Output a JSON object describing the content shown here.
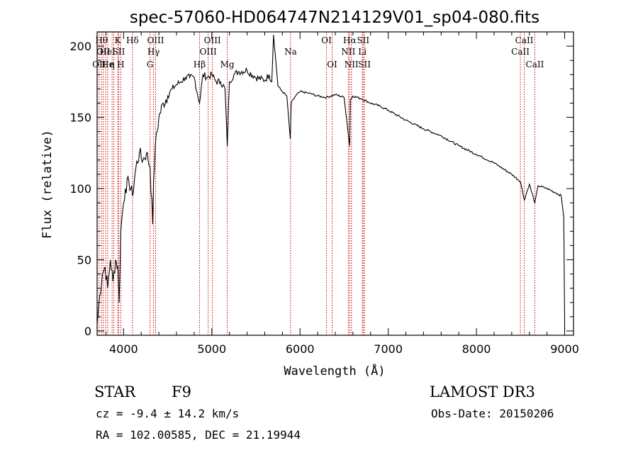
{
  "chart_data": {
    "type": "line",
    "title": "spec-57060-HD064747N214129V01_sp04-080.fits",
    "xlabel": "Wavelength (Å)",
    "ylabel": "Flux (relative)",
    "xlim": [
      3700,
      9100
    ],
    "ylim": [
      -3,
      210
    ],
    "xticks": [
      4000,
      5000,
      6000,
      7000,
      8000,
      9000
    ],
    "yticks": [
      0,
      50,
      100,
      150,
      200
    ],
    "xtick_labels": [
      "4000",
      "5000",
      "6000",
      "7000",
      "8000",
      "9000"
    ],
    "ytick_labels": [
      "0",
      "50",
      "100",
      "150",
      "200"
    ],
    "grid": false,
    "series": [
      {
        "name": "spectrum",
        "x": [
          3700,
          3730,
          3760,
          3790,
          3820,
          3850,
          3880,
          3910,
          3935,
          3950,
          3968,
          3990,
          4020,
          4060,
          4101,
          4140,
          4180,
          4220,
          4260,
          4300,
          4330,
          4340,
          4360,
          4400,
          4450,
          4500,
          4550,
          4600,
          4650,
          4700,
          4750,
          4800,
          4861,
          4900,
          4950,
          5000,
          5050,
          5100,
          5150,
          5175,
          5200,
          5250,
          5300,
          5400,
          5500,
          5600,
          5650,
          5680,
          5700,
          5750,
          5800,
          5850,
          5890,
          5900,
          5950,
          6000,
          6100,
          6200,
          6300,
          6400,
          6500,
          6563,
          6570,
          6600,
          6700,
          6800,
          6900,
          7000,
          7200,
          7400,
          7600,
          7800,
          8000,
          8200,
          8400,
          8498,
          8542,
          8600,
          8662,
          8700,
          8800,
          8900,
          8960,
          8990,
          9000
        ],
        "values": [
          5,
          25,
          40,
          45,
          30,
          50,
          35,
          50,
          45,
          20,
          70,
          85,
          100,
          105,
          95,
          115,
          125,
          120,
          125,
          115,
          75,
          105,
          130,
          150,
          160,
          165,
          170,
          173,
          175,
          178,
          178,
          178,
          160,
          180,
          178,
          180,
          175,
          175,
          170,
          130,
          175,
          180,
          182,
          183,
          178,
          176,
          180,
          175,
          208,
          172,
          168,
          165,
          135,
          160,
          165,
          168,
          167,
          165,
          164,
          166,
          164,
          130,
          162,
          165,
          163,
          160,
          158,
          155,
          148,
          142,
          137,
          130,
          124,
          118,
          110,
          105,
          92,
          103,
          90,
          102,
          100,
          97,
          95,
          80,
          0
        ]
      }
    ],
    "line_markers": [
      {
        "wavelength": 3722,
        "row": 3,
        "label": "OII"
      },
      {
        "wavelength": 3750,
        "row": 1,
        "label": "Hθ"
      },
      {
        "wavelength": 3770,
        "row": 2,
        "label": "OII"
      },
      {
        "wavelength": 3798,
        "row": 2,
        "label": "He"
      },
      {
        "wavelength": 3820,
        "row": 3,
        "label": "He"
      },
      {
        "wavelength": 3870,
        "row": 3,
        "label": "η"
      },
      {
        "wavelength": 3889,
        "row": 2,
        "label": "I"
      },
      {
        "wavelength": 3934,
        "row": 1,
        "label": "K"
      },
      {
        "wavelength": 3945,
        "row": 2,
        "label": "SII"
      },
      {
        "wavelength": 3968,
        "row": 3,
        "label": "H"
      },
      {
        "wavelength": 4101,
        "row": 1,
        "label": "Hδ"
      },
      {
        "wavelength": 4300,
        "row": 3,
        "label": "G"
      },
      {
        "wavelength": 4340,
        "row": 2,
        "label": "Hγ"
      },
      {
        "wavelength": 4363,
        "row": 1,
        "label": "OIII"
      },
      {
        "wavelength": 4861,
        "row": 3,
        "label": "Hβ"
      },
      {
        "wavelength": 4959,
        "row": 2,
        "label": "OIII"
      },
      {
        "wavelength": 5007,
        "row": 1,
        "label": "OIII"
      },
      {
        "wavelength": 5175,
        "row": 3,
        "label": "Mg"
      },
      {
        "wavelength": 5893,
        "row": 2,
        "label": "Na"
      },
      {
        "wavelength": 6300,
        "row": 1,
        "label": "OI"
      },
      {
        "wavelength": 6364,
        "row": 3,
        "label": "OI"
      },
      {
        "wavelength": 6548,
        "row": 2,
        "label": "NII"
      },
      {
        "wavelength": 6563,
        "row": 1,
        "label": "Hα"
      },
      {
        "wavelength": 6583,
        "row": 3,
        "label": "NII"
      },
      {
        "wavelength": 6707,
        "row": 2,
        "label": "Li"
      },
      {
        "wavelength": 6716,
        "row": 1,
        "label": "SII"
      },
      {
        "wavelength": 6731,
        "row": 3,
        "label": "SII"
      },
      {
        "wavelength": 8498,
        "row": 2,
        "label": "CaII"
      },
      {
        "wavelength": 8542,
        "row": 1,
        "label": "CaII"
      },
      {
        "wavelength": 8662,
        "row": 3,
        "label": "CaII"
      }
    ]
  },
  "info": {
    "object_type": "STAR",
    "subclass": "F9",
    "survey": "LAMOST DR3",
    "cz": "cz = -9.4 ± 14.2 km/s",
    "obs_date": "Obs-Date: 20150206",
    "coords": "RA = 102.00585, DEC =  21.19944"
  },
  "colors": {
    "line_marker": "#cc0000",
    "spectrum": "#000000",
    "axes": "#000000"
  }
}
